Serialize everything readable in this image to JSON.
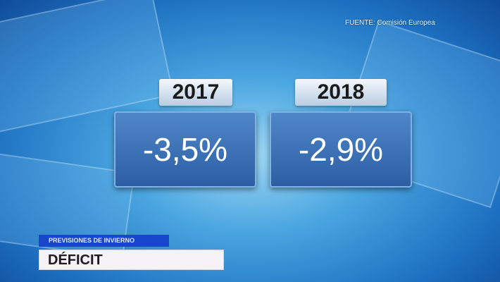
{
  "source": "FUENTE: Comisión Europea",
  "items": [
    {
      "year": "2017",
      "value": "-3,5%"
    },
    {
      "year": "2018",
      "value": "-2,9%"
    }
  ],
  "lower_third": {
    "subtitle": "PREVISIONES DE INVIERNO",
    "title": "DÉFICIT"
  },
  "colors": {
    "value_box": "#3a6db3",
    "subtitle_bar": "#1747c8",
    "title_bar": "#f6f3f6"
  }
}
